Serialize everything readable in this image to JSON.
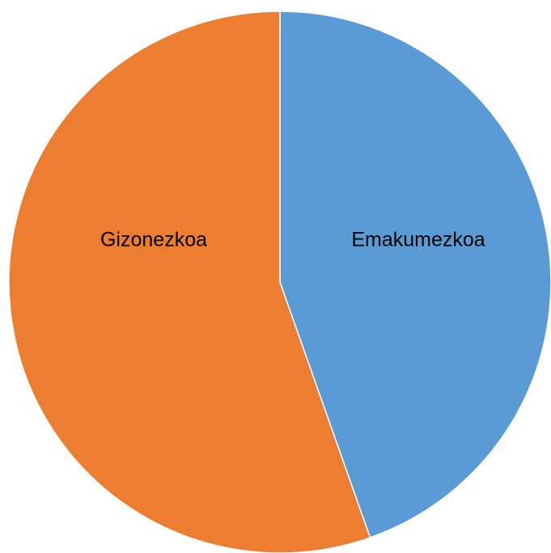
{
  "chart_data": {
    "type": "pie",
    "categories": [
      "Emakumezkoa",
      "Gizonezkoa"
    ],
    "values": [
      44.6,
      55.4
    ],
    "colors": [
      "#5b9bd5",
      "#ed7d31"
    ]
  }
}
